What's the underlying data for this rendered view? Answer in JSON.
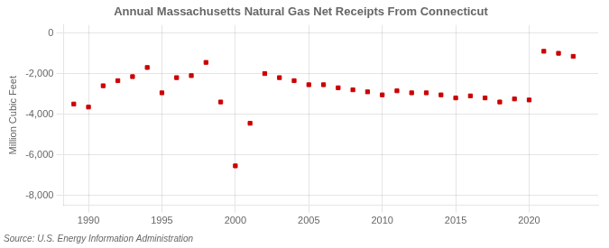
{
  "chart_data": {
    "type": "scatter",
    "title": "Annual Massachusetts Natural Gas Net Receipts From Connecticut",
    "y_label": "Million Cubic Feet",
    "annotations": [
      "Source: U.S. Energy Information Administration"
    ],
    "x": [
      1989,
      1990,
      1991,
      1992,
      1993,
      1994,
      1995,
      1996,
      1997,
      1998,
      1999,
      2000,
      2001,
      2002,
      2003,
      2004,
      2005,
      2006,
      2007,
      2008,
      2009,
      2010,
      2011,
      2012,
      2013,
      2014,
      2015,
      2016,
      2017,
      2018,
      2019,
      2020,
      2021,
      2022,
      2023
    ],
    "values": [
      -3500,
      -3650,
      -2600,
      -2350,
      -2150,
      -1700,
      -2950,
      -2200,
      -2100,
      -1450,
      -3400,
      -6550,
      -4450,
      -2000,
      -2200,
      -2350,
      -2550,
      -2550,
      -2700,
      -2800,
      -2900,
      -3050,
      -2850,
      -2950,
      -2950,
      -3050,
      -3200,
      -3100,
      -3200,
      -3400,
      -3250,
      -3300,
      -900,
      -1000,
      -1150
    ],
    "color": "#cc0000",
    "marker": "square",
    "xlim": [
      1988.3,
      2024.7
    ],
    "xticks": [
      1990,
      1995,
      2000,
      2005,
      2010,
      2015,
      2020
    ],
    "ylim": [
      -8500,
      400
    ],
    "yticks": [
      0,
      {
        "value": -2000,
        "label": "-2,000"
      },
      {
        "value": -4000,
        "label": "-4,000"
      },
      {
        "value": -6000,
        "label": "-6,000"
      },
      {
        "value": -8000,
        "label": "-8,000"
      }
    ],
    "grid": true
  }
}
